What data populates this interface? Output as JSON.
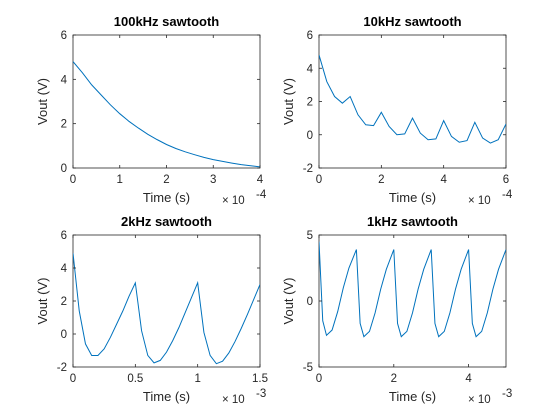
{
  "chart_data": [
    {
      "type": "line",
      "title": "100kHz sawtooth",
      "xlabel": "Time (s)",
      "ylabel": "Vout (V)",
      "x_multiplier": "× 10",
      "x_multiplier_exp": "-4",
      "xlim": [
        0,
        4
      ],
      "ylim": [
        0,
        6
      ],
      "xticks": [
        "0",
        "1",
        "2",
        "3",
        "4"
      ],
      "yticks": [
        "0",
        "2",
        "4",
        "6"
      ],
      "color": "#0072bd",
      "series": [
        {
          "x": [
            0,
            0.2,
            0.4,
            0.6,
            0.8,
            1.0,
            1.2,
            1.4,
            1.6,
            1.8,
            2.0,
            2.2,
            2.4,
            2.6,
            2.8,
            3.0,
            3.2,
            3.4,
            3.6,
            3.8,
            4.0
          ],
          "y": [
            4.8,
            4.3,
            3.75,
            3.3,
            2.85,
            2.45,
            2.1,
            1.8,
            1.52,
            1.28,
            1.06,
            0.88,
            0.73,
            0.6,
            0.48,
            0.38,
            0.3,
            0.22,
            0.15,
            0.1,
            0.05
          ]
        }
      ]
    },
    {
      "type": "line",
      "title": "10kHz sawtooth",
      "xlabel": "Time (s)",
      "ylabel": "Vout (V)",
      "x_multiplier": "× 10",
      "x_multiplier_exp": "-4",
      "xlim": [
        0,
        6
      ],
      "ylim": [
        -2,
        6
      ],
      "xticks": [
        "0",
        "2",
        "4",
        "6"
      ],
      "yticks": [
        "-2",
        "0",
        "2",
        "4",
        "6"
      ],
      "color": "#0072bd",
      "series": [
        {
          "x": [
            0,
            0.25,
            0.5,
            0.75,
            1.0,
            1.25,
            1.5,
            1.75,
            2.0,
            2.25,
            2.5,
            2.75,
            3.0,
            3.25,
            3.5,
            3.75,
            4.0,
            4.25,
            4.5,
            4.75,
            5.0,
            5.25,
            5.5,
            5.75,
            6.0
          ],
          "y": [
            4.8,
            3.2,
            2.3,
            1.9,
            2.3,
            1.2,
            0.6,
            0.55,
            1.35,
            0.5,
            0.0,
            0.05,
            1.0,
            0.1,
            -0.3,
            -0.25,
            0.85,
            -0.1,
            -0.45,
            -0.35,
            0.75,
            -0.2,
            -0.5,
            -0.3,
            0.65
          ]
        }
      ]
    },
    {
      "type": "line",
      "title": "2kHz sawtooth",
      "xlabel": "Time (s)",
      "ylabel": "Vout (V)",
      "x_multiplier": "× 10",
      "x_multiplier_exp": "-3",
      "xlim": [
        0,
        1.5
      ],
      "ylim": [
        -2,
        6
      ],
      "xticks": [
        "0",
        "0.5",
        "1",
        "1.5"
      ],
      "yticks": [
        "-2",
        "0",
        "2",
        "4",
        "6"
      ],
      "color": "#0072bd",
      "series": [
        {
          "x": [
            0,
            0.05,
            0.1,
            0.15,
            0.2,
            0.25,
            0.3,
            0.35,
            0.4,
            0.45,
            0.5,
            0.55,
            0.6,
            0.65,
            0.7,
            0.75,
            0.8,
            0.85,
            0.9,
            0.95,
            1.0,
            1.05,
            1.1,
            1.15,
            1.2,
            1.25,
            1.3,
            1.35,
            1.4,
            1.45,
            1.5
          ],
          "y": [
            4.9,
            1.4,
            -0.6,
            -1.3,
            -1.3,
            -0.9,
            -0.2,
            0.6,
            1.4,
            2.3,
            3.1,
            0.2,
            -1.3,
            -1.75,
            -1.6,
            -1.1,
            -0.4,
            0.4,
            1.3,
            2.2,
            3.1,
            0.1,
            -1.3,
            -1.8,
            -1.65,
            -1.15,
            -0.45,
            0.35,
            1.2,
            2.1,
            3.0
          ]
        }
      ]
    },
    {
      "type": "line",
      "title": "1kHz sawtooth",
      "xlabel": "Time (s)",
      "ylabel": "Vout (V)",
      "x_multiplier": "× 10",
      "x_multiplier_exp": "-3",
      "xlim": [
        0,
        5
      ],
      "ylim": [
        -5,
        5
      ],
      "xticks": [
        "0",
        "2",
        "4"
      ],
      "yticks": [
        "-5",
        "0",
        "5"
      ],
      "color": "#0072bd",
      "series": [
        {
          "x": [
            0,
            0.1,
            0.2,
            0.35,
            0.5,
            0.65,
            0.8,
            1.0,
            1.1,
            1.2,
            1.35,
            1.5,
            1.65,
            1.8,
            2.0,
            2.1,
            2.2,
            2.35,
            2.5,
            2.65,
            2.8,
            3.0,
            3.1,
            3.2,
            3.35,
            3.5,
            3.65,
            3.8,
            4.0,
            4.1,
            4.2,
            4.35,
            4.5,
            4.65,
            4.8,
            5.0
          ],
          "y": [
            4.5,
            -1.5,
            -2.6,
            -2.2,
            -0.8,
            1.0,
            2.5,
            3.9,
            -1.7,
            -2.7,
            -2.3,
            -0.9,
            0.9,
            2.4,
            3.9,
            -1.7,
            -2.7,
            -2.3,
            -0.9,
            0.9,
            2.4,
            3.9,
            -1.7,
            -2.7,
            -2.3,
            -0.9,
            0.9,
            2.4,
            3.9,
            -1.7,
            -2.7,
            -2.3,
            -0.9,
            0.9,
            2.4,
            3.9
          ]
        }
      ]
    }
  ]
}
